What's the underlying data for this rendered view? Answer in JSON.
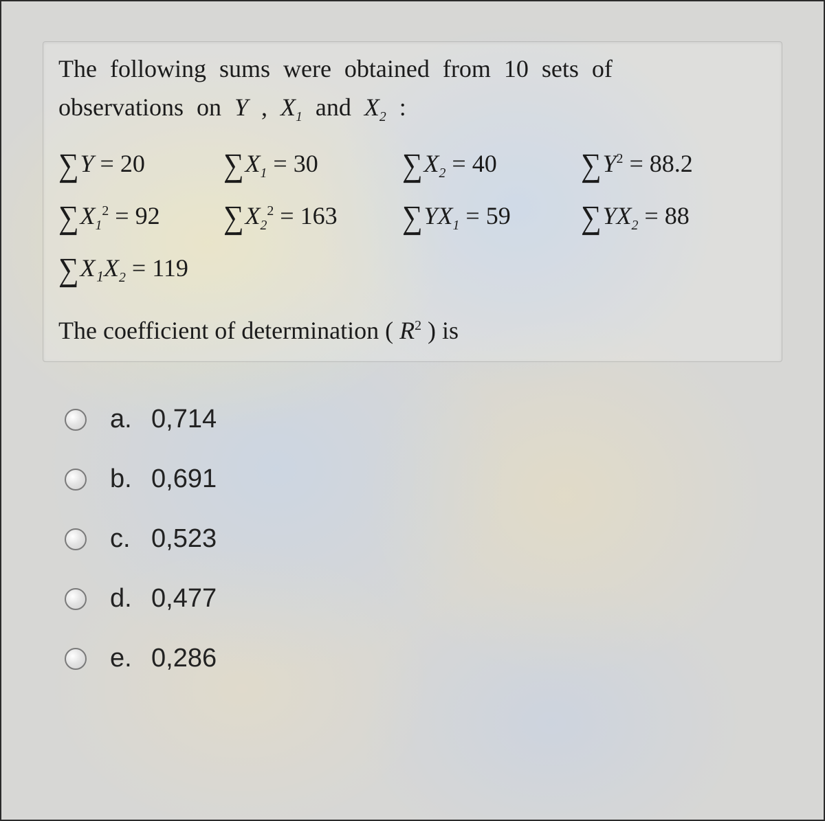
{
  "colors": {
    "page_bg": "#d7d7d5",
    "border": "#2b2b2b",
    "text": "#1b1b1b",
    "radio_border": "#7a7a7a",
    "tint_yellow": "#fff096",
    "tint_blue": "#a0c8ff"
  },
  "typography": {
    "question_font": "Georgia, Times New Roman, serif",
    "question_fontsize_pt": 27,
    "options_font": "Arial, Helvetica, sans-serif",
    "options_fontsize_pt": 28
  },
  "intro": {
    "line1_a": "The following sums were obtained from ",
    "n": "10",
    "line1_b": " sets of",
    "line2_a": "observations on ",
    "Y": "Y",
    "comma1": " , ",
    "X1": "X",
    "X1_sub": "1",
    "and": " and ",
    "X2": "X",
    "X2_sub": "2",
    "colon": " :"
  },
  "sums": {
    "s1": {
      "sym": "Y",
      "sub": "",
      "sup": "",
      "val": "20"
    },
    "s2": {
      "sym": "X",
      "sub": "1",
      "sup": "",
      "val": "30"
    },
    "s3": {
      "sym": "X",
      "sub": "2",
      "sup": "",
      "val": "40"
    },
    "s4": {
      "sym": "Y",
      "sub": "",
      "sup": "2",
      "val": "88.2"
    },
    "s5": {
      "sym": "X",
      "sub": "1",
      "sup": "2",
      "val": "92"
    },
    "s6": {
      "sym": "X",
      "sub": "2",
      "sup": "2",
      "val": "163"
    },
    "s7": {
      "sym": "YX",
      "sub": "1",
      "sup": "",
      "val": "59"
    },
    "s8": {
      "sym": "YX",
      "sub": "2",
      "sup": "",
      "val": "88"
    },
    "s9": {
      "sym": "X₁X",
      "sub": "2",
      "sup": "",
      "val": "119"
    }
  },
  "sigma": "∑",
  "eq": " = ",
  "conclusion": {
    "a": "The coefficient of determination ( ",
    "R": "R",
    "sup": "2",
    "b": " ) is"
  },
  "options": [
    {
      "letter": "a.",
      "value": "0,714"
    },
    {
      "letter": "b.",
      "value": "0,691"
    },
    {
      "letter": "c.",
      "value": "0,523"
    },
    {
      "letter": "d.",
      "value": "0,477"
    },
    {
      "letter": "e.",
      "value": "0,286"
    }
  ]
}
